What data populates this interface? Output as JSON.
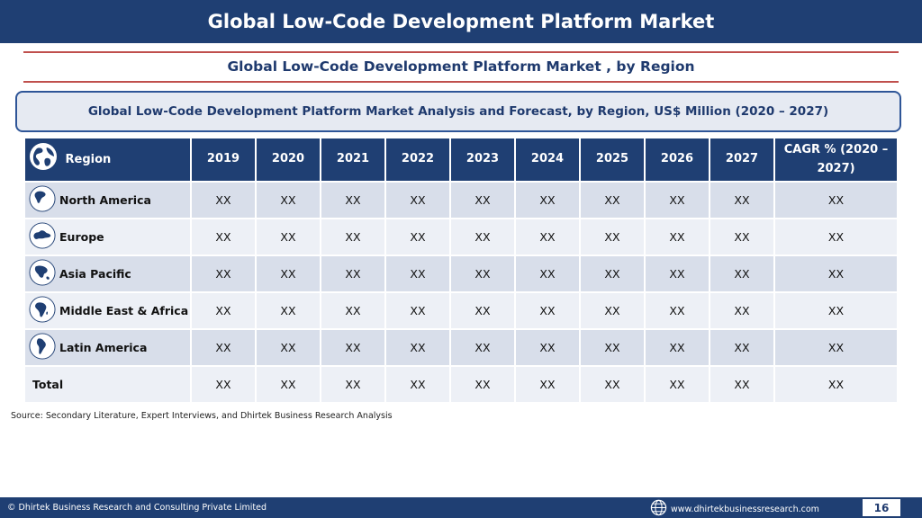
{
  "header": {
    "title": "Global Low-Code Development Platform Market"
  },
  "subtitle": "Global Low-Code Development Platform Market , by Region",
  "banner": "Global Low-Code Development Platform Market  Analysis and Forecast, by Region, US$ Million (2020 – 2027)",
  "table": {
    "columns": [
      "Region",
      "2019",
      "2020",
      "2021",
      "2022",
      "2023",
      "2024",
      "2025",
      "2026",
      "2027",
      "CAGR % (2020 – 2027)"
    ],
    "rows": [
      {
        "region": "North America",
        "icon": "north-america-map-icon",
        "values": [
          "XX",
          "XX",
          "XX",
          "XX",
          "XX",
          "XX",
          "XX",
          "XX",
          "XX",
          "XX"
        ]
      },
      {
        "region": "Europe",
        "icon": "europe-map-icon",
        "values": [
          "XX",
          "XX",
          "XX",
          "XX",
          "XX",
          "XX",
          "XX",
          "XX",
          "XX",
          "XX"
        ]
      },
      {
        "region": "Asia Pacific",
        "icon": "asia-pacific-map-icon",
        "values": [
          "XX",
          "XX",
          "XX",
          "XX",
          "XX",
          "XX",
          "XX",
          "XX",
          "XX",
          "XX"
        ]
      },
      {
        "region": "Middle East & Africa",
        "icon": "africa-map-icon",
        "values": [
          "XX",
          "XX",
          "XX",
          "XX",
          "XX",
          "XX",
          "XX",
          "XX",
          "XX",
          "XX"
        ]
      },
      {
        "region": "Latin America",
        "icon": "latin-america-map-icon",
        "values": [
          "XX",
          "XX",
          "XX",
          "XX",
          "XX",
          "XX",
          "XX",
          "XX",
          "XX",
          "XX"
        ]
      }
    ],
    "total": {
      "label": "Total",
      "values": [
        "XX",
        "XX",
        "XX",
        "XX",
        "XX",
        "XX",
        "XX",
        "XX",
        "XX",
        "XX"
      ]
    }
  },
  "source": "Source: Secondary Literature, Expert Interviews, and Dhirtek Business Research Analysis",
  "footer": {
    "copyright": "© Dhirtek Business Research and Consulting Private Limited",
    "website": "www.dhirtekbusinessresearch.com",
    "page_number": "16"
  },
  "colors": {
    "navy": "#1f3f73",
    "accent_red": "#c0504d",
    "row_odd": "#d8deea",
    "row_even": "#edf0f6"
  }
}
